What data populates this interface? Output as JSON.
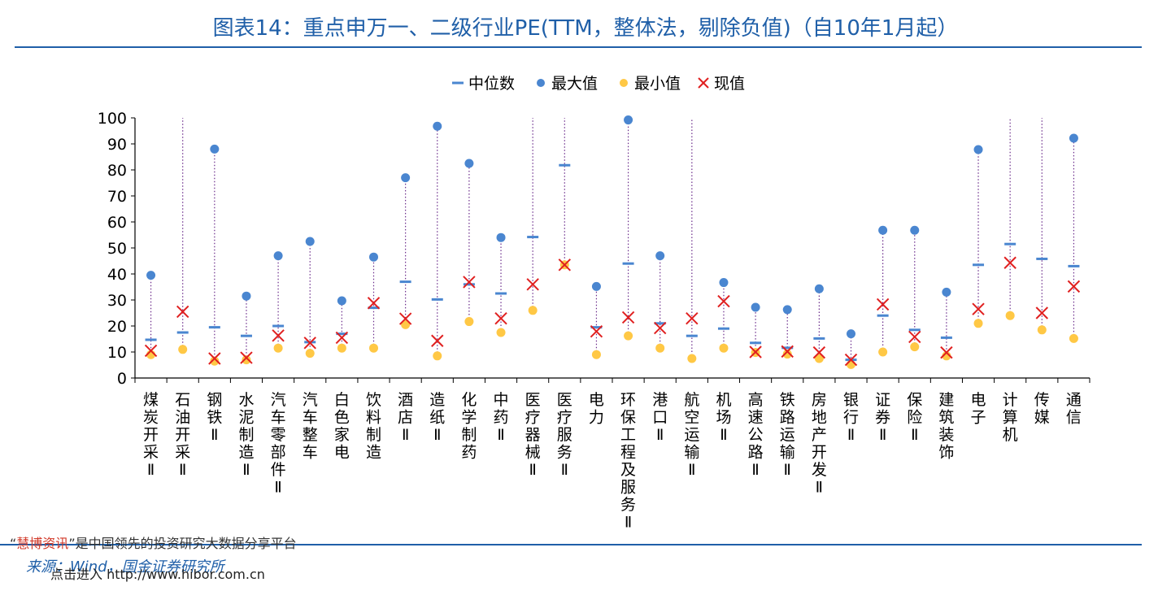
{
  "title": "图表14：重点申万一、二级行业PE(TTM，整体法，剔除负值)（自10年1月起）",
  "legend": [
    {
      "key": "median",
      "label": "中位数",
      "symbol": "dash",
      "color": "#4a86d0"
    },
    {
      "key": "max",
      "label": "最大值",
      "symbol": "dot",
      "color": "#4a86d0"
    },
    {
      "key": "min",
      "label": "最小值",
      "symbol": "dot",
      "color": "#ffc845"
    },
    {
      "key": "current",
      "label": "现值",
      "symbol": "cross",
      "color": "#e02020"
    }
  ],
  "watermark": {
    "quote_open": "“",
    "brand": "慧博资讯",
    "quote_close": "”",
    "text": "是中国领先的投资研究大数据分享平台"
  },
  "source": "来源：Wind，国金证券研究所",
  "site": "点击进入 http://www.hibor.com.cn",
  "colors": {
    "title": "#1f5fa8",
    "median": "#4a86d0",
    "max": "#4a86d0",
    "min": "#ffc845",
    "current": "#e02020",
    "range_line": "#6a2a8a",
    "axis": "#000000"
  },
  "chart_data": {
    "type": "scatter",
    "title": "",
    "xlabel": "",
    "ylabel": "",
    "ylim": [
      0,
      100
    ],
    "yticks": [
      0,
      10,
      20,
      30,
      40,
      50,
      60,
      70,
      80,
      90,
      100
    ],
    "grid": false,
    "legend_position": "top",
    "categories": [
      "煤炭开采Ⅱ",
      "石油开采Ⅱ",
      "钢铁Ⅱ",
      "水泥制造Ⅱ",
      "汽车零部件Ⅱ",
      "汽车整车",
      "白色家电",
      "饮料制造",
      "酒店Ⅱ",
      "造纸Ⅱ",
      "化学制药",
      "中药Ⅱ",
      "医疗器械Ⅱ",
      "医疗服务Ⅱ",
      "电力",
      "环保工程及服务Ⅱ",
      "港口Ⅱ",
      "航空运输Ⅱ",
      "机场Ⅱ",
      "高速公路Ⅱ",
      "铁路运输Ⅱ",
      "房地产开发Ⅱ",
      "银行Ⅱ",
      "证券Ⅱ",
      "保险Ⅱ",
      "建筑装饰",
      "电子",
      "计算机",
      "传媒",
      "通信"
    ],
    "series": [
      {
        "name": "中位数",
        "values": [
          14.7,
          17.5,
          19.5,
          16.2,
          20,
          13.8,
          17,
          27,
          37,
          30.2,
          36,
          32.5,
          54.2,
          81.8,
          19.5,
          44,
          21,
          16.2,
          19,
          13.5,
          11.6,
          15.2,
          7,
          24,
          18.5,
          15.5,
          43.5,
          51.5,
          45.8,
          43
        ]
      },
      {
        "name": "最大值",
        "values": [
          39.5,
          100,
          88,
          31.5,
          47,
          52.5,
          29.7,
          46.5,
          77,
          96.8,
          82.5,
          54,
          100,
          100,
          35.2,
          99.2,
          47,
          100,
          36.7,
          27.2,
          26.3,
          34.3,
          17,
          56.8,
          56.8,
          33,
          87.8,
          100,
          100,
          92.2
        ]
      },
      {
        "name": "最小值",
        "values": [
          9,
          11,
          6.5,
          7,
          11.5,
          9.5,
          11.5,
          11.5,
          20.5,
          8.5,
          21.7,
          17.5,
          26,
          43.5,
          9,
          16.2,
          11.5,
          7.5,
          11.5,
          9.8,
          9.2,
          7.5,
          5.2,
          10,
          12,
          8.5,
          21,
          24,
          18.5,
          15.2
        ]
      },
      {
        "name": "现值",
        "values": [
          10.5,
          25.5,
          7.5,
          7.8,
          16.3,
          13.5,
          15.5,
          28.8,
          22.8,
          14.3,
          36.9,
          22.9,
          36,
          43.5,
          17.9,
          23.3,
          19.2,
          22.9,
          29.5,
          10,
          10.2,
          9.8,
          7,
          28.3,
          15.8,
          9.8,
          26.5,
          44.3,
          25,
          35.2
        ]
      }
    ]
  }
}
